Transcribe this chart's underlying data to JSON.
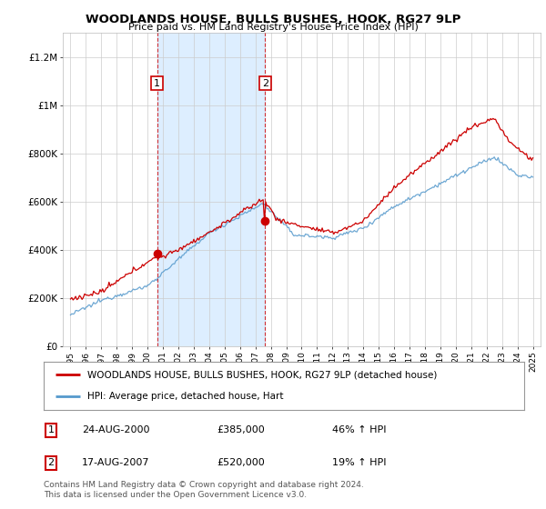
{
  "title": "WOODLANDS HOUSE, BULLS BUSHES, HOOK, RG27 9LP",
  "subtitle": "Price paid vs. HM Land Registry's House Price Index (HPI)",
  "legend_label_red": "WOODLANDS HOUSE, BULLS BUSHES, HOOK, RG27 9LP (detached house)",
  "legend_label_blue": "HPI: Average price, detached house, Hart",
  "transaction1_date": "24-AUG-2000",
  "transaction1_price": "£385,000",
  "transaction1_hpi": "46% ↑ HPI",
  "transaction1_year": 2000.625,
  "transaction1_price_val": 385000,
  "transaction2_date": "17-AUG-2007",
  "transaction2_price": "£520,000",
  "transaction2_hpi": "19% ↑ HPI",
  "transaction2_year": 2007.625,
  "transaction2_price_val": 520000,
  "footer": "Contains HM Land Registry data © Crown copyright and database right 2024.\nThis data is licensed under the Open Government Licence v3.0.",
  "red_color": "#cc0000",
  "blue_color": "#5599cc",
  "shade_color": "#ddeeff",
  "background_color": "#ffffff",
  "grid_color": "#cccccc",
  "ylim": [
    0,
    1300000
  ],
  "yticks": [
    0,
    200000,
    400000,
    600000,
    800000,
    1000000,
    1200000
  ],
  "ytick_labels": [
    "£0",
    "£200K",
    "£400K",
    "£600K",
    "£800K",
    "£1M",
    "£1.2M"
  ],
  "xmin": 1994.5,
  "xmax": 2025.5
}
